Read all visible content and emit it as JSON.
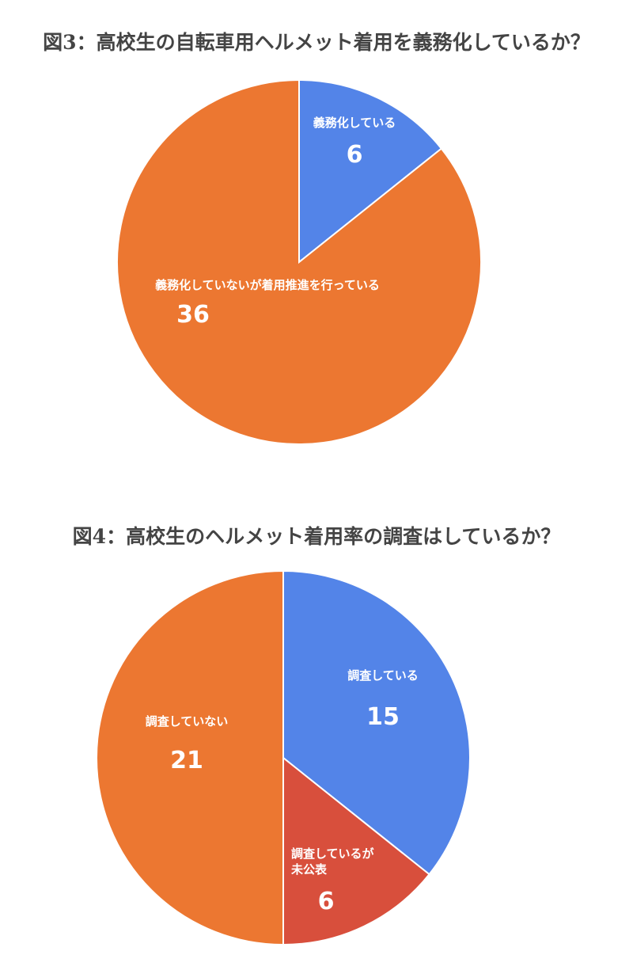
{
  "chart_data": [
    {
      "type": "pie",
      "title": "図3：高校生の自転車用ヘルメット着用を義務化しているか？",
      "slices": [
        {
          "label": "義務化している",
          "value": 6,
          "color": "#5384e8"
        },
        {
          "label": "義務化していないが着用推進を行っている",
          "value": 36,
          "color": "#ec7731"
        }
      ]
    },
    {
      "type": "pie",
      "title": "図4：高校生のヘルメット着用率の調査はしているか？",
      "slices": [
        {
          "label": "調査している",
          "value": 15,
          "color": "#5384e8"
        },
        {
          "label": "調査しているが\n未公表",
          "value": 6,
          "color": "#d84f3c"
        },
        {
          "label": "調査していない",
          "value": 21,
          "color": "#ec7731"
        }
      ]
    }
  ]
}
